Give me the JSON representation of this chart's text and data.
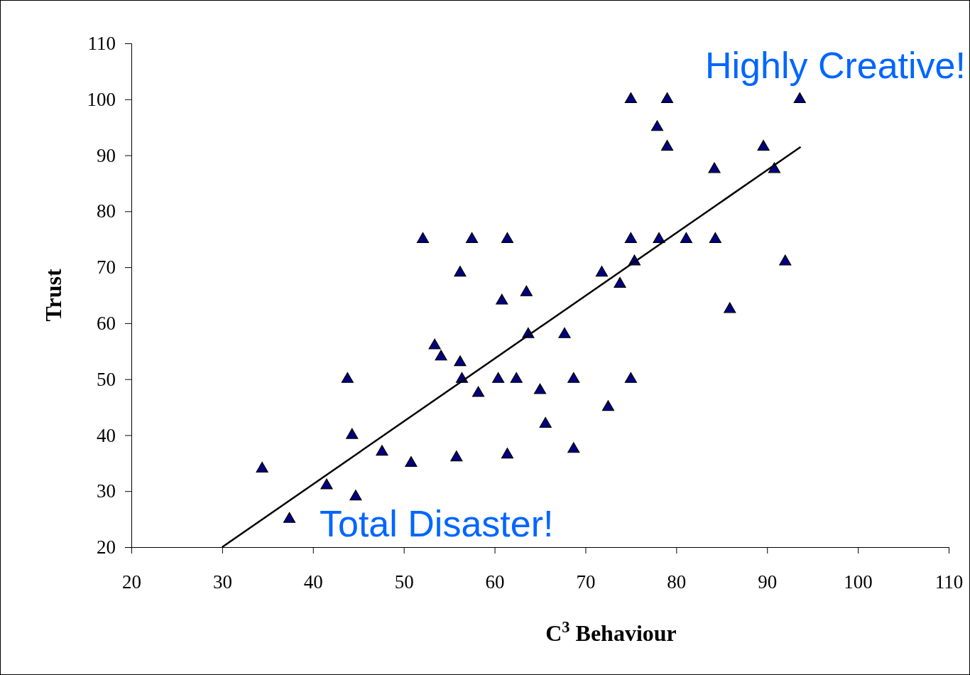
{
  "chart_data": {
    "type": "scatter",
    "xlabel": "C$^{3}$ Behaviour",
    "ylabel": "Trust",
    "annotations": [
      "Highly Creative!",
      "Total Disaster!"
    ],
    "xlim": [
      20,
      110
    ],
    "xticks": [
      20,
      30,
      40,
      50,
      60,
      70,
      80,
      90,
      100,
      110
    ],
    "ylim": [
      20,
      110
    ],
    "yticks": [
      20,
      30,
      40,
      50,
      60,
      70,
      80,
      90,
      100,
      110
    ],
    "grid": false,
    "marker": "triangle",
    "series": [
      {
        "color": "#000080",
        "x": [
          34.4,
          37.4,
          41.5,
          43.8,
          44.3,
          44.7,
          47.6,
          50.8,
          52.1,
          53.4,
          54.1,
          55.8,
          56.2,
          56.2,
          56.4,
          57.5,
          58.2,
          60.4,
          60.8,
          61.4,
          61.4,
          62.4,
          63.5,
          63.7,
          65.0,
          65.6,
          67.7,
          68.7,
          68.7,
          71.8,
          72.5,
          73.8,
          75.0,
          75.0,
          75.0,
          75.4,
          77.9,
          78.1,
          79.0,
          79.0,
          81.1,
          84.2,
          84.3,
          85.9,
          89.6,
          90.8,
          92.0,
          93.6
        ],
        "values": [
          34,
          25,
          31,
          50,
          40,
          29,
          37,
          35,
          75,
          56,
          54,
          36,
          69,
          53,
          50,
          75,
          47.5,
          50,
          64,
          75,
          36.5,
          50,
          65.5,
          58,
          48,
          42,
          58,
          50,
          37.5,
          69,
          45,
          67,
          100,
          75,
          50,
          71,
          95,
          75,
          100,
          91.5,
          75,
          87.5,
          75,
          62.5,
          91.5,
          87.5,
          71,
          100
        ]
      },
      {
        "type": "line",
        "color": "#000000",
        "marker": "none",
        "x": [
          30,
          93.7
        ],
        "values": [
          20,
          91.5
        ]
      }
    ]
  }
}
